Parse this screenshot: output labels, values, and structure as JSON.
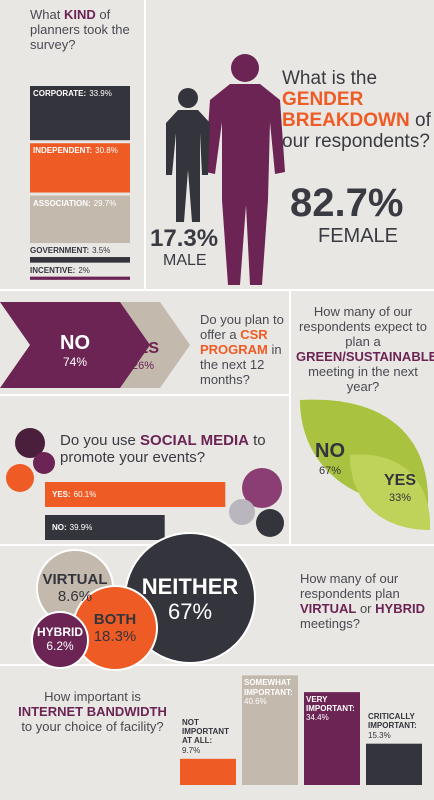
{
  "planners": {
    "question": [
      "What ",
      "KIND",
      " of planners took the survey?"
    ],
    "items": [
      {
        "label": "CORPORATE:",
        "value": 33.9,
        "value_label": "33.9%"
      },
      {
        "label": "INDEPENDENT:",
        "value": 30.8,
        "value_label": "30.8%"
      },
      {
        "label": "ASSOCIATION:",
        "value": 29.7,
        "value_label": "29.7%"
      },
      {
        "label": "GOVERNMENT:",
        "value": 3.5,
        "value_label": "3.5%"
      },
      {
        "label": "INCENTIVE:",
        "value": 2,
        "value_label": "2%"
      }
    ]
  },
  "gender": {
    "question": [
      "What is the ",
      "GENDER BREAKDOWN",
      " of our respondents?"
    ],
    "male": {
      "label": "MALE",
      "value": 17.3,
      "value_label": "17.3%"
    },
    "female": {
      "label": "FEMALE",
      "value": 82.7,
      "value_label": "82.7%"
    }
  },
  "csr": {
    "question": [
      "Do you plan to offer a ",
      "CSR PROGRAM",
      " in the next 12 months?"
    ],
    "no": {
      "label": "NO",
      "value": 74,
      "value_label": "74%"
    },
    "yes": {
      "label": "YES",
      "value": 26,
      "value_label": "26%"
    }
  },
  "green": {
    "question": [
      "How many of our respondents expect to plan a ",
      "GREEN/SUSTAINABLE",
      " meeting in the next year?"
    ],
    "no": {
      "label": "NO",
      "value": 67,
      "value_label": "67%"
    },
    "yes": {
      "label": "YES",
      "value": 33,
      "value_label": "33%"
    }
  },
  "social": {
    "question": [
      "Do you use ",
      "SOCIAL MEDIA",
      " to promote your events?"
    ],
    "items": [
      {
        "label": "YES:",
        "value": 60.1,
        "value_label": "60.1%"
      },
      {
        "label": "NO:",
        "value": 39.9,
        "value_label": "39.9%"
      }
    ]
  },
  "virtual": {
    "question": [
      "How many of our respondents plan ",
      "VIRTUAL",
      " or ",
      "HYBRID",
      " meetings?"
    ],
    "items": [
      {
        "label": "VIRTUAL",
        "value": 8.6,
        "value_label": "8.6%"
      },
      {
        "label": "NEITHER",
        "value": 67,
        "value_label": "67%"
      },
      {
        "label": "BOTH",
        "value": 18.3,
        "value_label": "18.3%"
      },
      {
        "label": "HYBRID",
        "value": 6.2,
        "value_label": "6.2%"
      }
    ]
  },
  "bandwidth": {
    "question": [
      "How important is ",
      "INTERNET BANDWIDTH",
      " to your choice of facility?"
    ],
    "items": [
      {
        "label": "NOT IMPORTANT AT ALL:",
        "value": 9.7,
        "value_label": "9.7%"
      },
      {
        "label": "SOMEWHAT IMPORTANT:",
        "value": 40.6,
        "value_label": "40.6%"
      },
      {
        "label": "VERY IMPORTANT:",
        "value": 34.4,
        "value_label": "34.4%"
      },
      {
        "label": "CRITICALLY IMPORTANT:",
        "value": 15.3,
        "value_label": "15.3%"
      }
    ]
  }
}
